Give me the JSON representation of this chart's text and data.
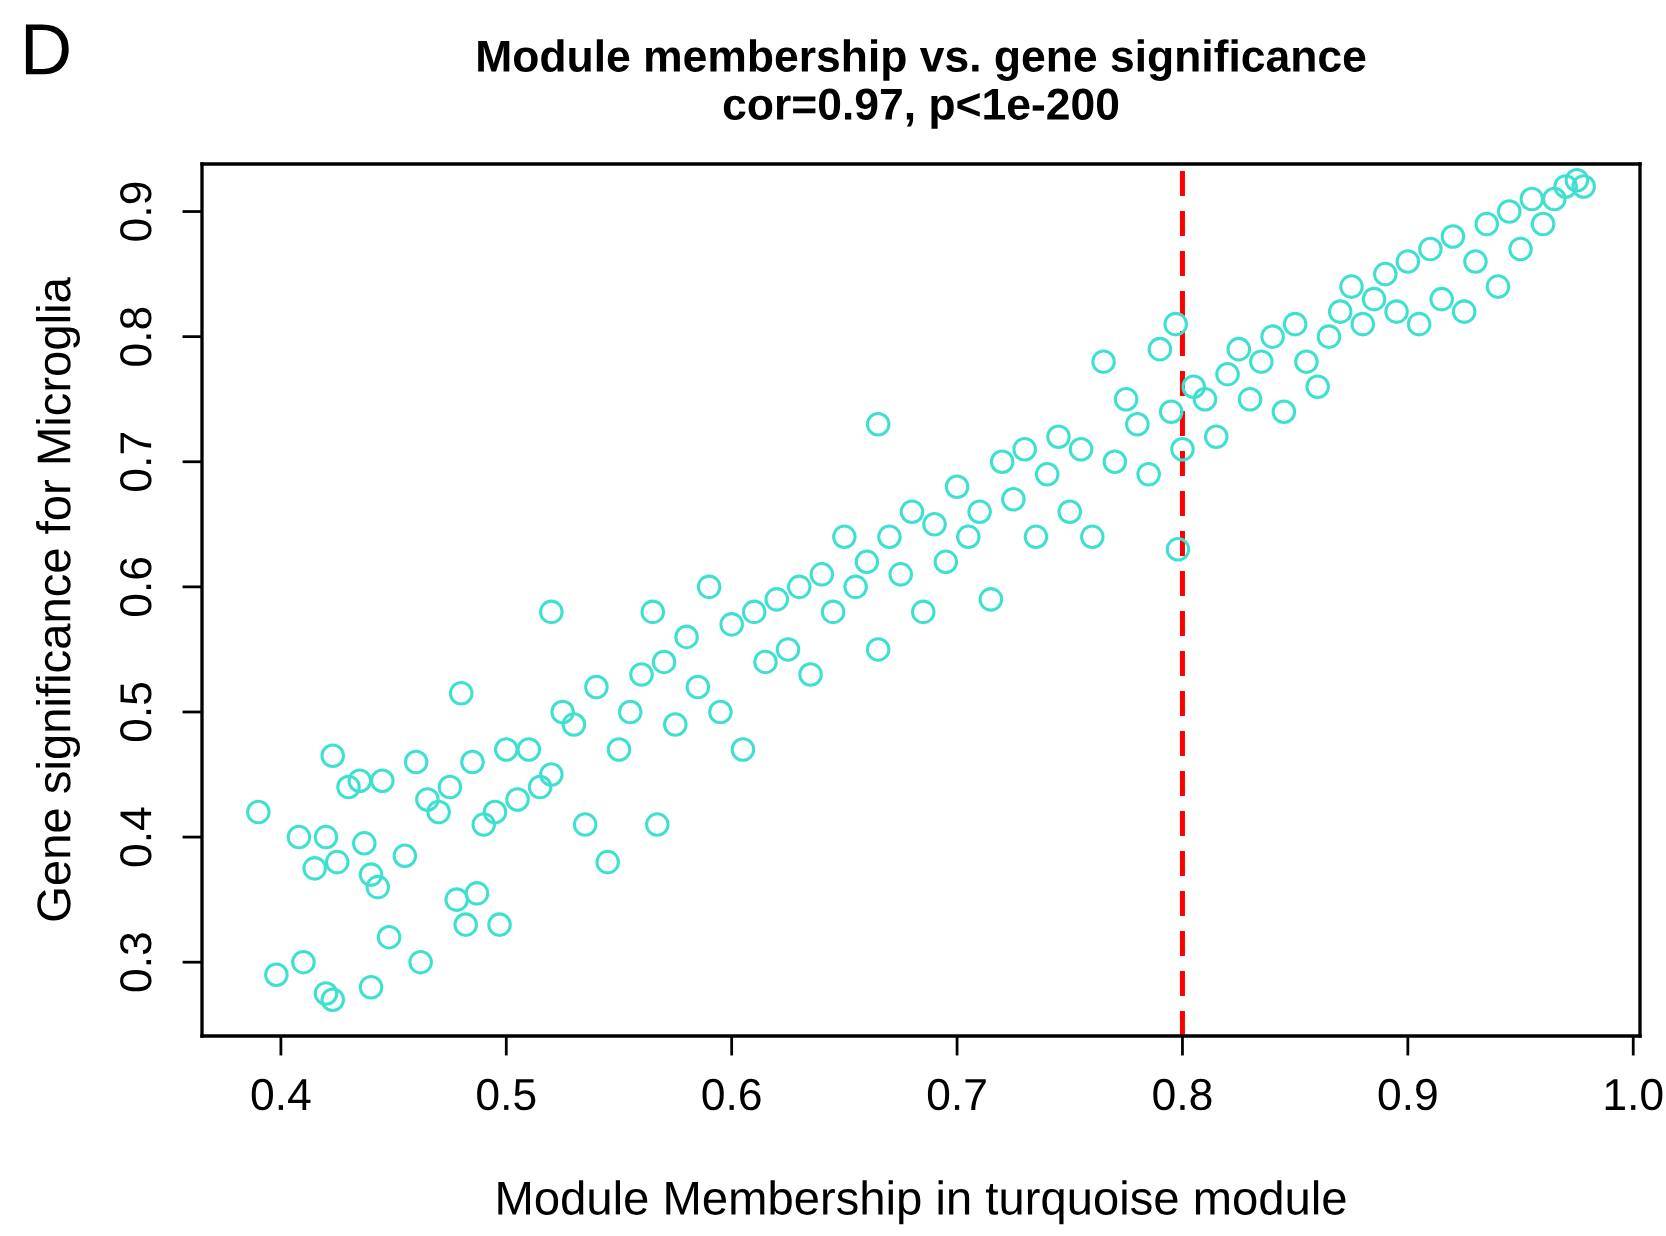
{
  "chart_data": {
    "type": "scatter",
    "title": "Module membership vs. gene significance\ncor=0.97, p<1e-200",
    "xlabel": "Module Membership in turquoise module",
    "ylabel": "Gene significance for Microglia",
    "annotations": [
      "D"
    ],
    "marker": "circle",
    "grid": false,
    "legend": false,
    "xlim": [
      0.365,
      1.003
    ],
    "xticks": [
      0.4,
      0.5,
      0.6,
      0.7,
      0.8,
      0.9,
      {
        "value": 1.0,
        "label": "1.0"
      }
    ],
    "ylim": [
      0.241,
      0.938
    ],
    "yticks": [
      0.3,
      0.4,
      0.5,
      0.6,
      0.7,
      0.8,
      0.9
    ],
    "ref_lines": [
      {
        "axis": "x",
        "value": 0.8,
        "label": null,
        "color": "#ff0000",
        "line_style": "dashed"
      }
    ],
    "series": [
      {
        "color": "#40e0d0",
        "x": [
          0.39,
          0.398,
          0.408,
          0.41,
          0.415,
          0.42,
          0.42,
          0.423,
          0.423,
          0.425,
          0.43,
          0.435,
          0.437,
          0.44,
          0.44,
          0.443,
          0.445,
          0.448,
          0.455,
          0.46,
          0.462,
          0.465,
          0.47,
          0.475,
          0.478,
          0.48,
          0.482,
          0.485,
          0.487,
          0.49,
          0.495,
          0.497,
          0.5,
          0.505,
          0.51,
          0.515,
          0.52,
          0.52,
          0.525,
          0.53,
          0.535,
          0.54,
          0.545,
          0.55,
          0.555,
          0.56,
          0.565,
          0.567,
          0.57,
          0.575,
          0.58,
          0.585,
          0.59,
          0.595,
          0.6,
          0.605,
          0.61,
          0.615,
          0.62,
          0.625,
          0.63,
          0.635,
          0.64,
          0.645,
          0.65,
          0.655,
          0.66,
          0.665,
          0.665,
          0.67,
          0.675,
          0.68,
          0.685,
          0.69,
          0.695,
          0.7,
          0.705,
          0.71,
          0.715,
          0.72,
          0.725,
          0.73,
          0.735,
          0.74,
          0.745,
          0.75,
          0.755,
          0.76,
          0.765,
          0.77,
          0.775,
          0.78,
          0.785,
          0.79,
          0.795,
          0.797,
          0.798,
          0.8,
          0.805,
          0.81,
          0.815,
          0.82,
          0.825,
          0.83,
          0.835,
          0.84,
          0.845,
          0.85,
          0.855,
          0.86,
          0.865,
          0.87,
          0.875,
          0.88,
          0.885,
          0.89,
          0.895,
          0.9,
          0.905,
          0.91,
          0.915,
          0.92,
          0.925,
          0.93,
          0.935,
          0.94,
          0.945,
          0.95,
          0.955,
          0.96,
          0.965,
          0.97,
          0.975,
          0.978
        ],
        "values": [
          0.42,
          0.29,
          0.4,
          0.3,
          0.375,
          0.4,
          0.275,
          0.27,
          0.465,
          0.38,
          0.44,
          0.445,
          0.395,
          0.28,
          0.37,
          0.36,
          0.445,
          0.32,
          0.385,
          0.46,
          0.3,
          0.43,
          0.42,
          0.44,
          0.35,
          0.515,
          0.33,
          0.46,
          0.355,
          0.41,
          0.42,
          0.33,
          0.47,
          0.43,
          0.47,
          0.44,
          0.58,
          0.45,
          0.5,
          0.49,
          0.41,
          0.52,
          0.38,
          0.47,
          0.5,
          0.53,
          0.58,
          0.41,
          0.54,
          0.49,
          0.56,
          0.52,
          0.6,
          0.5,
          0.57,
          0.47,
          0.58,
          0.54,
          0.59,
          0.55,
          0.6,
          0.53,
          0.61,
          0.58,
          0.64,
          0.6,
          0.62,
          0.73,
          0.55,
          0.64,
          0.61,
          0.66,
          0.58,
          0.65,
          0.62,
          0.68,
          0.64,
          0.66,
          0.59,
          0.7,
          0.67,
          0.71,
          0.64,
          0.69,
          0.72,
          0.66,
          0.71,
          0.64,
          0.78,
          0.7,
          0.75,
          0.73,
          0.69,
          0.79,
          0.74,
          0.81,
          0.63,
          0.71,
          0.76,
          0.75,
          0.72,
          0.77,
          0.79,
          0.75,
          0.78,
          0.8,
          0.74,
          0.81,
          0.78,
          0.76,
          0.8,
          0.82,
          0.84,
          0.81,
          0.83,
          0.85,
          0.82,
          0.86,
          0.81,
          0.87,
          0.83,
          0.88,
          0.82,
          0.86,
          0.89,
          0.84,
          0.9,
          0.87,
          0.91,
          0.89,
          0.91,
          0.92,
          0.925,
          0.92
        ]
      }
    ]
  }
}
